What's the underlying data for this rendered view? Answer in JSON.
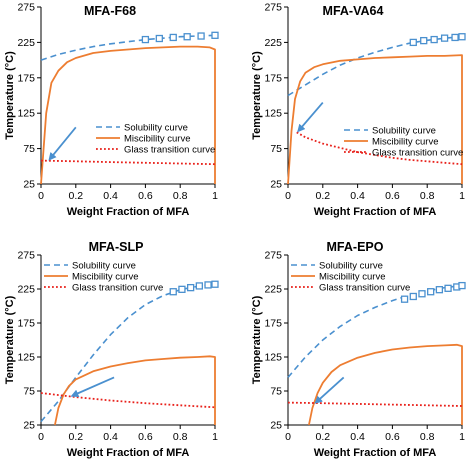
{
  "figure": {
    "colors": {
      "solubility": "#4a90cf",
      "miscibility": "#ed7d31",
      "glass": "#e8201a",
      "arrow": "#4a90cf"
    },
    "legend": {
      "solubility": "Solubility curve",
      "miscibility": "Miscibility curve",
      "glass": "Glass transition curve"
    }
  },
  "chart_data": [
    {
      "type": "line",
      "title": "MFA-F68",
      "xlabel": "Weight Fraction of MFA",
      "ylabel": "Temperature (°C)",
      "xlim": [
        0,
        1
      ],
      "ylim": [
        25,
        275
      ],
      "xticks": [
        0,
        0.2,
        0.4,
        0.6,
        0.8,
        1
      ],
      "yticks": [
        25,
        75,
        125,
        175,
        225,
        275
      ],
      "xtick_labels": [
        "0",
        "0.2",
        "0.4",
        "0.6",
        "0.8",
        "1"
      ],
      "ytick_labels": [
        "25",
        "75",
        "125",
        "175",
        "225",
        "275"
      ],
      "grid": false,
      "legend_position": "center-right",
      "series": [
        {
          "name": "Solubility curve",
          "style": "dashed",
          "marker": "square",
          "x": [
            0.0,
            0.1,
            0.2,
            0.3,
            0.4,
            0.5,
            0.6,
            0.7,
            0.8,
            0.9,
            1.0
          ],
          "y": [
            200,
            208,
            214,
            219,
            223,
            226,
            229,
            231,
            233,
            234,
            235
          ],
          "marker_points": [
            [
              0.6,
              229
            ],
            [
              0.68,
              230.5
            ],
            [
              0.76,
              232
            ],
            [
              0.84,
              233
            ],
            [
              0.92,
              234
            ],
            [
              1.0,
              235
            ]
          ]
        },
        {
          "name": "Miscibility curve",
          "style": "solid",
          "x": [
            0.0,
            0.03,
            0.06,
            0.1,
            0.15,
            0.2,
            0.3,
            0.4,
            0.5,
            0.6,
            0.7,
            0.8,
            0.9,
            0.97,
            1.0,
            1.0
          ],
          "y": [
            25,
            125,
            168,
            185,
            197,
            203,
            210,
            213,
            215,
            217,
            218,
            219,
            219,
            218,
            215,
            25
          ]
        },
        {
          "name": "Glass transition curve",
          "style": "dotted",
          "x": [
            0.0,
            0.2,
            0.4,
            0.6,
            0.8,
            1.0
          ],
          "y": [
            58,
            57,
            56,
            55,
            54,
            53
          ]
        }
      ],
      "arrow": {
        "from": [
          0.2,
          105
        ],
        "to": [
          0.05,
          60
        ]
      }
    },
    {
      "type": "line",
      "title": "MFA-VA64",
      "xlabel": "Weight Fraction of MFA",
      "ylabel": "Temperature (°C)",
      "xlim": [
        0,
        1
      ],
      "ylim": [
        25,
        275
      ],
      "xticks": [
        0,
        0.2,
        0.4,
        0.6,
        0.8,
        1
      ],
      "yticks": [
        25,
        75,
        125,
        175,
        225,
        275
      ],
      "xtick_labels": [
        "0",
        "0.2",
        "0.4",
        "0.6",
        "0.8",
        "1"
      ],
      "ytick_labels": [
        "25",
        "75",
        "125",
        "175",
        "225",
        "275"
      ],
      "grid": false,
      "legend_position": "center-right",
      "series": [
        {
          "name": "Solubility curve",
          "style": "dashed",
          "marker": "square",
          "x": [
            0.0,
            0.1,
            0.2,
            0.3,
            0.4,
            0.5,
            0.6,
            0.7,
            0.8,
            0.9,
            1.0
          ],
          "y": [
            150,
            165,
            180,
            193,
            203,
            211,
            218,
            224,
            228,
            231,
            233
          ],
          "marker_points": [
            [
              0.72,
              225
            ],
            [
              0.78,
              227.5
            ],
            [
              0.84,
              229
            ],
            [
              0.9,
              231
            ],
            [
              0.96,
              232
            ],
            [
              1.0,
              233
            ]
          ]
        },
        {
          "name": "Miscibility curve",
          "style": "solid",
          "x": [
            0.0,
            0.02,
            0.04,
            0.07,
            0.1,
            0.15,
            0.2,
            0.3,
            0.4,
            0.5,
            0.6,
            0.7,
            0.8,
            0.9,
            1.0,
            1.0
          ],
          "y": [
            25,
            100,
            145,
            170,
            182,
            190,
            194,
            199,
            201,
            203,
            204,
            205,
            206,
            206,
            207,
            25
          ]
        },
        {
          "name": "Glass transition curve",
          "style": "dotted",
          "x": [
            0.05,
            0.1,
            0.2,
            0.3,
            0.4,
            0.5,
            0.6,
            0.7,
            0.8,
            0.9,
            1.0
          ],
          "y": [
            98,
            91,
            82,
            76,
            70,
            66,
            62,
            59,
            57,
            55,
            53
          ]
        }
      ],
      "arrow": {
        "from": [
          0.2,
          140
        ],
        "to": [
          0.06,
          100
        ]
      }
    },
    {
      "type": "line",
      "title": "MFA-SLP",
      "xlabel": "Weight Fraction of MFA",
      "ylabel": "Temperature (°C)",
      "xlim": [
        0,
        1
      ],
      "ylim": [
        25,
        275
      ],
      "xticks": [
        0,
        0.2,
        0.4,
        0.6,
        0.8,
        1
      ],
      "yticks": [
        25,
        75,
        125,
        175,
        225,
        275
      ],
      "xtick_labels": [
        "0",
        "0.2",
        "0.4",
        "0.6",
        "0.8",
        "1"
      ],
      "ytick_labels": [
        "25",
        "75",
        "125",
        "175",
        "225",
        "275"
      ],
      "grid": false,
      "legend_position": "top-right",
      "series": [
        {
          "name": "Solubility curve",
          "style": "dashed",
          "marker": "square",
          "x": [
            0.0,
            0.1,
            0.2,
            0.3,
            0.4,
            0.5,
            0.6,
            0.7,
            0.8,
            0.9,
            1.0
          ],
          "y": [
            30,
            60,
            95,
            128,
            158,
            183,
            202,
            215,
            224,
            229,
            232
          ],
          "marker_points": [
            [
              0.76,
              221
            ],
            [
              0.81,
              224.5
            ],
            [
              0.86,
              227
            ],
            [
              0.91,
              229.5
            ],
            [
              0.96,
              231
            ],
            [
              1.0,
              232
            ]
          ]
        },
        {
          "name": "Miscibility curve",
          "style": "solid",
          "x": [
            0.08,
            0.1,
            0.13,
            0.16,
            0.2,
            0.3,
            0.4,
            0.5,
            0.6,
            0.7,
            0.8,
            0.9,
            0.97,
            1.0,
            1.0
          ],
          "y": [
            25,
            50,
            70,
            82,
            92,
            104,
            111,
            116,
            120,
            122,
            124,
            125,
            126,
            125,
            25
          ]
        },
        {
          "name": "Glass transition curve",
          "style": "dotted",
          "x": [
            0.0,
            0.2,
            0.4,
            0.6,
            0.8,
            1.0
          ],
          "y": [
            72,
            66,
            61,
            57,
            54,
            51
          ]
        }
      ],
      "arrow": {
        "from": [
          0.42,
          95
        ],
        "to": [
          0.18,
          68
        ]
      }
    },
    {
      "type": "line",
      "title": "MFA-EPO",
      "xlabel": "Weight Fraction of MFA",
      "ylabel": "Temperature (°C)",
      "xlim": [
        0,
        1
      ],
      "ylim": [
        25,
        275
      ],
      "xticks": [
        0,
        0.2,
        0.4,
        0.6,
        0.8,
        1
      ],
      "yticks": [
        25,
        75,
        125,
        175,
        225,
        275
      ],
      "xtick_labels": [
        "0",
        "0.2",
        "0.4",
        "0.6",
        "0.8",
        "1"
      ],
      "ytick_labels": [
        "25",
        "75",
        "125",
        "175",
        "225",
        "275"
      ],
      "grid": false,
      "legend_position": "top-right",
      "series": [
        {
          "name": "Solubility curve",
          "style": "dashed",
          "marker": "square",
          "x": [
            0.0,
            0.1,
            0.2,
            0.3,
            0.4,
            0.5,
            0.6,
            0.7,
            0.8,
            0.9,
            1.0
          ],
          "y": [
            95,
            125,
            150,
            170,
            186,
            198,
            208,
            216,
            222,
            227,
            230
          ],
          "marker_points": [
            [
              0.67,
              210
            ],
            [
              0.72,
              214
            ],
            [
              0.77,
              218
            ],
            [
              0.82,
              221
            ],
            [
              0.87,
              224
            ],
            [
              0.92,
              226
            ],
            [
              0.97,
              228
            ],
            [
              1.0,
              230
            ]
          ]
        },
        {
          "name": "Miscibility curve",
          "style": "solid",
          "x": [
            0.12,
            0.14,
            0.17,
            0.2,
            0.25,
            0.3,
            0.4,
            0.5,
            0.6,
            0.7,
            0.8,
            0.9,
            0.97,
            1.0,
            1.0
          ],
          "y": [
            25,
            50,
            72,
            87,
            103,
            113,
            124,
            131,
            136,
            139,
            141,
            142,
            143,
            141,
            25
          ]
        },
        {
          "name": "Glass transition curve",
          "style": "dotted",
          "x": [
            0.0,
            0.2,
            0.4,
            0.6,
            0.8,
            1.0
          ],
          "y": [
            58,
            57,
            56,
            55,
            54,
            53
          ]
        }
      ],
      "arrow": {
        "from": [
          0.32,
          95
        ],
        "to": [
          0.16,
          58
        ]
      }
    }
  ]
}
